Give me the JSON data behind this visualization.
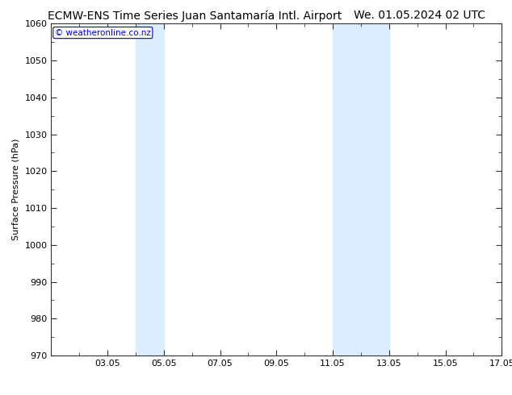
{
  "title_left": "ECMW-ENS Time Series Juan Santamaría Intl. Airport",
  "title_right": "We. 01.05.2024 02 UTC",
  "ylabel": "Surface Pressure (hPa)",
  "ylim": [
    970,
    1060
  ],
  "yticks": [
    970,
    980,
    990,
    1000,
    1010,
    1020,
    1030,
    1040,
    1050,
    1060
  ],
  "xlim_start": 1.0,
  "xlim_end": 17.0,
  "xtick_labels": [
    "03.05",
    "05.05",
    "07.05",
    "09.05",
    "11.05",
    "13.05",
    "15.05",
    "17.05"
  ],
  "xtick_positions": [
    3,
    5,
    7,
    9,
    11,
    13,
    15,
    17
  ],
  "shaded_bands": [
    {
      "x_start": 4.0,
      "x_end": 5.0
    },
    {
      "x_start": 11.0,
      "x_end": 13.0
    }
  ],
  "shade_color": "#daeeff",
  "watermark_text": "© weatheronline.co.nz",
  "watermark_color": "#0000cc",
  "plot_bg": "#ffffff",
  "fig_bg": "#ffffff",
  "title_fontsize": 10,
  "ylabel_fontsize": 8,
  "tick_fontsize": 8,
  "tick_color": "#333333",
  "spine_color": "#333333"
}
